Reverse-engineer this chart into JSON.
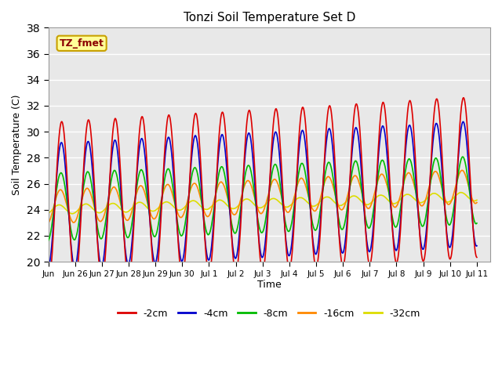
{
  "title": "Tonzi Soil Temperature Set D",
  "xlabel": "Time",
  "ylabel": "Soil Temperature (C)",
  "ylim": [
    20,
    38
  ],
  "yticks": [
    20,
    22,
    24,
    26,
    28,
    30,
    32,
    34,
    36,
    38
  ],
  "fig_bg": "#ffffff",
  "plot_bg": "#e8e8e8",
  "annotation_text": "TZ_fmet",
  "annotation_color": "#8b0000",
  "annotation_bg": "#ffff99",
  "annotation_border": "#c8a000",
  "colors": {
    "-2cm": "#dd0000",
    "-4cm": "#0000cc",
    "-8cm": "#00bb00",
    "-16cm": "#ff8800",
    "-32cm": "#dddd00"
  },
  "legend_labels": [
    "-2cm",
    "-4cm",
    "-8cm",
    "-16cm",
    "-32cm"
  ],
  "legend_colors": [
    "#dd0000",
    "#0000cc",
    "#00bb00",
    "#ff8800",
    "#dddd00"
  ]
}
